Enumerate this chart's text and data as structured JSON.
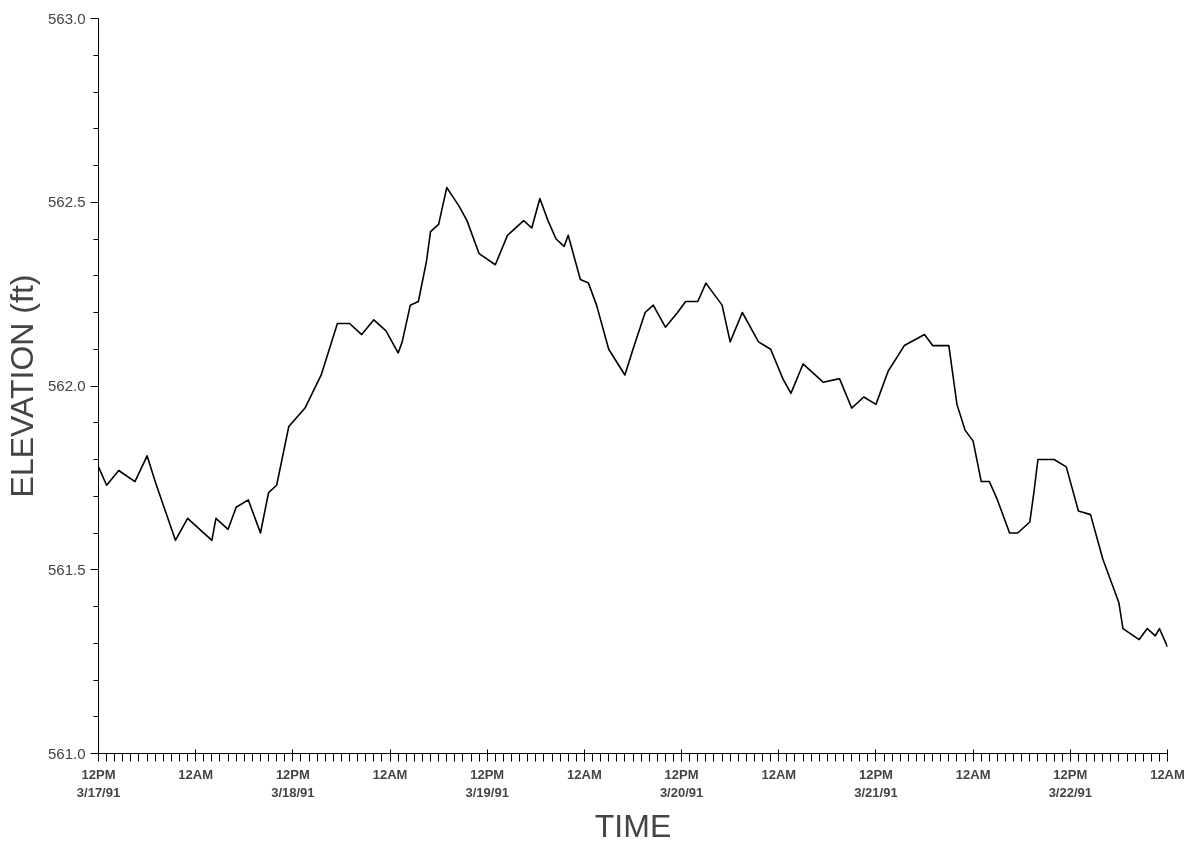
{
  "chart_data": {
    "type": "line",
    "xlabel": "TIME",
    "ylabel": "ELEVATION (ft)",
    "x": [
      "1991-03-17T12:00",
      "1991-03-17T13:00",
      "1991-03-17T14:30",
      "1991-03-17T16:30",
      "1991-03-17T18:00",
      "1991-03-17T19:00",
      "1991-03-17T21:30",
      "1991-03-17T23:00",
      "1991-03-18T02:00",
      "1991-03-18T02:30",
      "1991-03-18T04:00",
      "1991-03-18T05:00",
      "1991-03-18T06:30",
      "1991-03-18T08:00",
      "1991-03-18T09:00",
      "1991-03-18T10:00",
      "1991-03-18T11:30",
      "1991-03-18T13:30",
      "1991-03-18T15:30",
      "1991-03-18T17:30",
      "1991-03-18T19:00",
      "1991-03-18T20:30",
      "1991-03-18T22:00",
      "1991-03-18T23:30",
      "1991-03-19T01:00",
      "1991-03-19T01:30",
      "1991-03-19T02:30",
      "1991-03-19T03:30",
      "1991-03-19T04:30",
      "1991-03-19T05:00",
      "1991-03-19T06:00",
      "1991-03-19T07:00",
      "1991-03-19T08:30",
      "1991-03-19T09:30",
      "1991-03-19T11:00",
      "1991-03-19T13:00",
      "1991-03-19T14:30",
      "1991-03-19T16:30",
      "1991-03-19T17:30",
      "1991-03-19T18:30",
      "1991-03-19T19:30",
      "1991-03-19T20:30",
      "1991-03-19T21:30",
      "1991-03-19T22:00",
      "1991-03-19T23:30",
      "1991-03-20T00:30",
      "1991-03-20T01:30",
      "1991-03-20T03:00",
      "1991-03-20T05:00",
      "1991-03-20T06:00",
      "1991-03-20T07:30",
      "1991-03-20T08:30",
      "1991-03-20T10:00",
      "1991-03-20T11:30",
      "1991-03-20T12:30",
      "1991-03-20T14:00",
      "1991-03-20T15:00",
      "1991-03-20T17:00",
      "1991-03-20T18:00",
      "1991-03-20T19:30",
      "1991-03-20T21:30",
      "1991-03-20T23:00",
      "1991-03-21T00:30",
      "1991-03-21T01:30",
      "1991-03-21T03:00",
      "1991-03-21T05:30",
      "1991-03-21T07:30",
      "1991-03-21T09:00",
      "1991-03-21T10:30",
      "1991-03-21T12:00",
      "1991-03-21T13:30",
      "1991-03-21T15:30",
      "1991-03-21T18:00",
      "1991-03-21T19:00",
      "1991-03-21T21:00",
      "1991-03-21T22:00",
      "1991-03-21T23:00",
      "1991-03-22T00:00",
      "1991-03-22T01:00",
      "1991-03-22T02:00",
      "1991-03-22T03:00",
      "1991-03-22T04:30",
      "1991-03-22T05:30",
      "1991-03-22T07:00",
      "1991-03-22T07:30",
      "1991-03-22T08:00",
      "1991-03-22T10:00",
      "1991-03-22T11:30",
      "1991-03-22T13:00",
      "1991-03-22T14:30",
      "1991-03-22T16:00",
      "1991-03-22T18:00",
      "1991-03-22T18:30",
      "1991-03-22T20:30",
      "1991-03-22T21:30",
      "1991-03-22T22:30",
      "1991-03-22T23:00",
      "1991-03-23T00:00"
    ],
    "series": [
      {
        "color": "#000000",
        "values": [
          561.78,
          561.73,
          561.77,
          561.74,
          561.81,
          561.74,
          561.58,
          561.64,
          561.58,
          561.64,
          561.61,
          561.67,
          561.69,
          561.6,
          561.71,
          561.73,
          561.89,
          561.94,
          562.03,
          562.17,
          562.17,
          562.14,
          562.18,
          562.15,
          562.09,
          562.12,
          562.22,
          562.23,
          562.34,
          562.42,
          562.44,
          562.54,
          562.49,
          562.45,
          562.36,
          562.33,
          562.41,
          562.45,
          562.43,
          562.51,
          562.45,
          562.4,
          562.38,
          562.41,
          562.29,
          562.28,
          562.22,
          562.1,
          562.03,
          562.1,
          562.2,
          562.22,
          562.16,
          562.2,
          562.23,
          562.23,
          562.28,
          562.22,
          562.12,
          562.2,
          562.12,
          562.1,
          562.02,
          561.98,
          562.06,
          562.01,
          562.02,
          561.94,
          561.97,
          561.95,
          562.04,
          562.11,
          562.14,
          562.11,
          562.11,
          561.95,
          561.88,
          561.85,
          561.74,
          561.74,
          561.69,
          561.6,
          561.6,
          561.63,
          561.71,
          561.8,
          561.8,
          561.78,
          561.66,
          561.65,
          561.53,
          561.41,
          561.34,
          561.31,
          561.34,
          561.32,
          561.34,
          561.29
        ]
      }
    ],
    "xlim": [
      "1991-03-17T12:00",
      "1991-03-23T00:00"
    ],
    "xticks": [
      {
        "value": "1991-03-17T12:00",
        "label": "12PM\n3/17/91"
      },
      {
        "value": "1991-03-18T00:00",
        "label": "12AM"
      },
      {
        "value": "1991-03-18T12:00",
        "label": "12PM\n3/18/91"
      },
      {
        "value": "1991-03-19T00:00",
        "label": "12AM"
      },
      {
        "value": "1991-03-19T12:00",
        "label": "12PM\n3/19/91"
      },
      {
        "value": "1991-03-20T00:00",
        "label": "12AM"
      },
      {
        "value": "1991-03-20T12:00",
        "label": "12PM\n3/20/91"
      },
      {
        "value": "1991-03-21T00:00",
        "label": "12AM"
      },
      {
        "value": "1991-03-21T12:00",
        "label": "12PM\n3/21/91"
      },
      {
        "value": "1991-03-22T00:00",
        "label": "12AM"
      },
      {
        "value": "1991-03-22T12:00",
        "label": "12PM\n3/22/91"
      },
      {
        "value": "1991-03-23T00:00",
        "label": "12AM"
      }
    ],
    "ylim": [
      561.0,
      563.0
    ],
    "yticks": [
      {
        "value": 561.0,
        "label": "561.0"
      },
      {
        "value": 561.5,
        "label": "561.5"
      },
      {
        "value": 562.0,
        "label": "562.0"
      },
      {
        "value": 562.5,
        "label": "562.5"
      },
      {
        "value": 563.0,
        "label": "563.0"
      }
    ],
    "grid": false,
    "marker": "none",
    "line_style": "solid"
  }
}
